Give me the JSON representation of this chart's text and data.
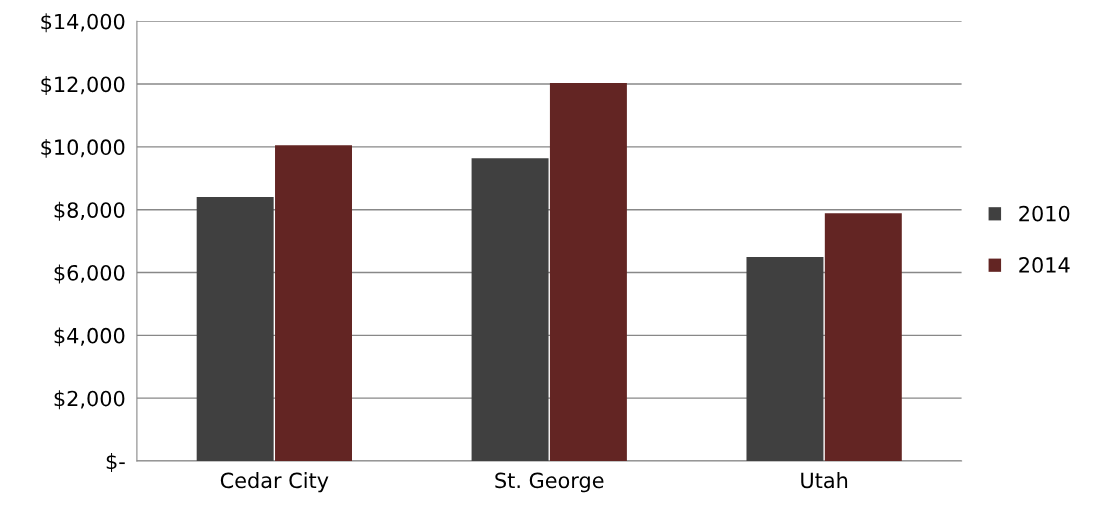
{
  "chart_data": {
    "type": "bar",
    "categories": [
      "Cedar City",
      "St. George",
      "Utah"
    ],
    "series": [
      {
        "name": "2010",
        "color": "#404040",
        "values": [
          8400,
          9640,
          6490
        ]
      },
      {
        "name": "2014",
        "color": "#632523",
        "values": [
          10050,
          12030,
          7890
        ]
      }
    ],
    "ylim": [
      0,
      14000
    ],
    "yticks": [
      {
        "value": 0,
        "label": "$-"
      },
      {
        "value": 2000,
        "label": "$2,000"
      },
      {
        "value": 4000,
        "label": "$4,000"
      },
      {
        "value": 6000,
        "label": "$6,000"
      },
      {
        "value": 8000,
        "label": "$8,000"
      },
      {
        "value": 10000,
        "label": "$10,000"
      },
      {
        "value": 12000,
        "label": "$12,000"
      },
      {
        "value": 14000,
        "label": "$14,000"
      }
    ],
    "grid": "y",
    "legend": "right"
  }
}
